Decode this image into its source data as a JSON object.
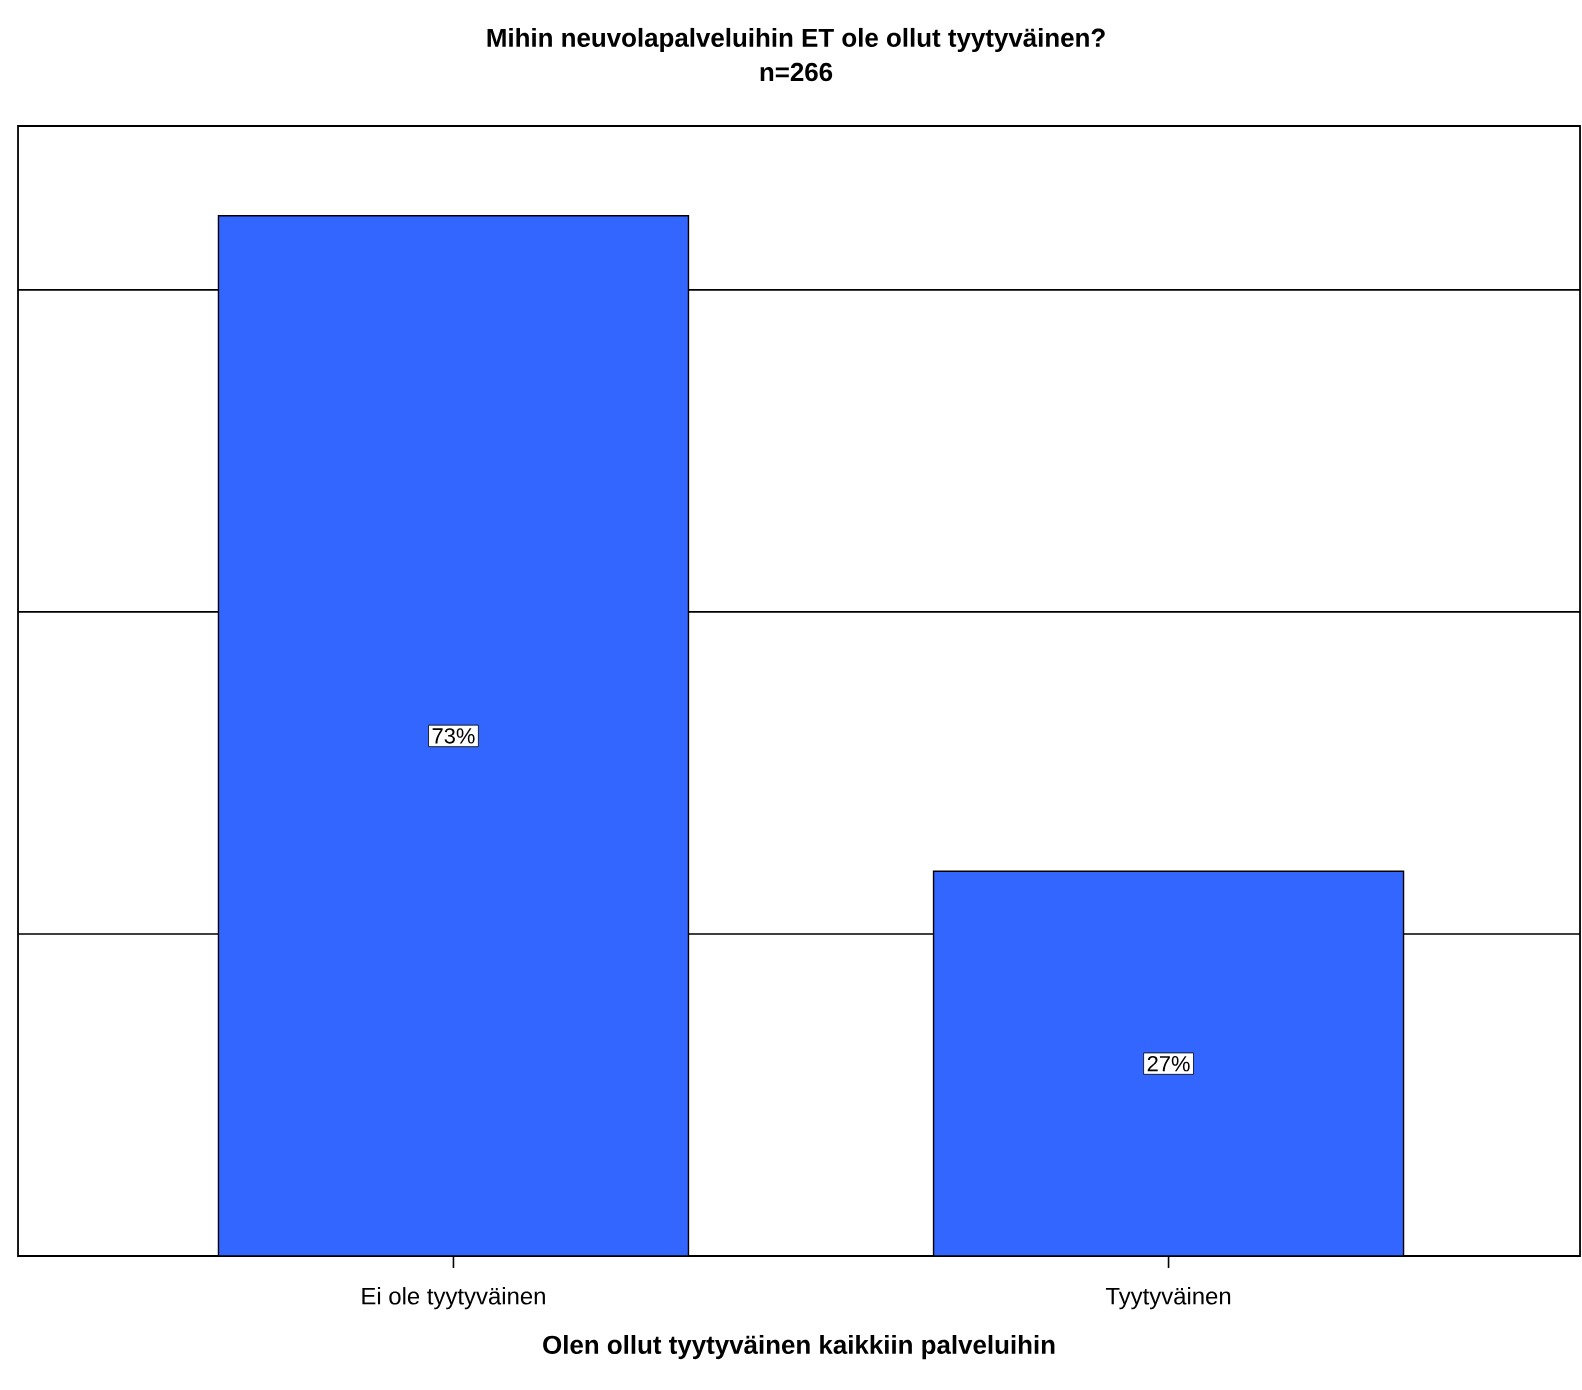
{
  "chart_data": {
    "type": "bar",
    "title": "Mihin neuvolapalveluihin ET ole ollut tyytyväinen?",
    "subtitle": "n=266",
    "xlabel": "Olen ollut tyytyväinen kaikkiin palveluihin",
    "categories": [
      "Ei ole tyytyväinen",
      "Tyytyväinen"
    ],
    "values": [
      73,
      27
    ],
    "value_labels": [
      "73%",
      "27%"
    ],
    "color": "#3366ff",
    "ylim": [
      0,
      79.3
    ],
    "yticks": [
      {
        "value": 22.6,
        "label": null
      },
      {
        "value": 45.2,
        "label": null
      },
      {
        "value": 67.8,
        "label": null
      }
    ],
    "tick_labels": "x",
    "grid": "y"
  }
}
